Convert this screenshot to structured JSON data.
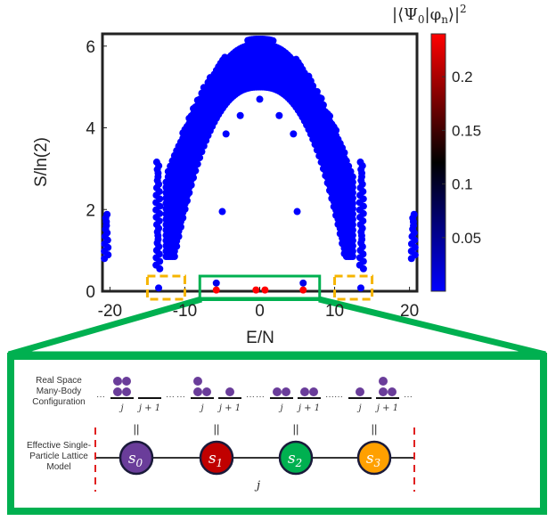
{
  "chart_data": {
    "type": "scatter",
    "xlabel": "E/N",
    "ylabel": "S/ln(2)",
    "xlim": [
      -21,
      21
    ],
    "ylim": [
      0,
      6.3
    ],
    "xticks": [
      "-20",
      "-10",
      "0",
      "10",
      "20"
    ],
    "xtick_values": [
      -20,
      -10,
      0,
      10,
      20
    ],
    "yticks": [
      "0",
      "2",
      "4",
      "6"
    ],
    "ytick_values": [
      0,
      2,
      4,
      6
    ],
    "grid": false,
    "colorbar": {
      "title_prefix": "|⟨Ψ",
      "title_sub0": "0",
      "title_mid": "|φ",
      "title_subn": "n",
      "title_suffix": "⟩|",
      "title_sup": "2",
      "range": [
        0,
        0.24
      ],
      "ticks": [
        "0.05",
        "0.1",
        "0.15",
        "0.2"
      ],
      "tick_values": [
        0.05,
        0.1,
        0.15,
        0.2
      ],
      "colormap": [
        "#0000ff",
        "#000000",
        "#ff0000"
      ]
    },
    "bands": [
      {
        "E": -20.5,
        "S_min": 0.8,
        "S_max": 1.9
      },
      {
        "E": 20.5,
        "S_min": 0.8,
        "S_max": 1.9
      },
      {
        "E": -13.6,
        "S_min": 0.55,
        "S_max": 3.2
      },
      {
        "E": 13.6,
        "S_min": 0.55,
        "S_max": 3.2
      },
      {
        "E": -11.5,
        "S_min": 1.6,
        "S_max": 3.1
      },
      {
        "E": 11.5,
        "S_min": 1.6,
        "S_max": 3.1
      }
    ],
    "dome": {
      "E_half_width": 12.5,
      "S_peak": 6.2,
      "S_inner_peak": 5.0
    },
    "points": [
      {
        "E": 0,
        "S": 4.7,
        "overlap": 0.0
      },
      {
        "E": -2.6,
        "S": 4.3,
        "overlap": 0.0
      },
      {
        "E": 2.6,
        "S": 4.3,
        "overlap": 0.0
      },
      {
        "E": -5.0,
        "S": 1.95,
        "overlap": 0.0
      },
      {
        "E": 5.0,
        "S": 1.95,
        "overlap": 0.0
      },
      {
        "E": -4.5,
        "S": 3.85,
        "overlap": 0.0
      },
      {
        "E": 4.5,
        "S": 3.85,
        "overlap": 0.0
      },
      {
        "E": -13.5,
        "S": 0.08,
        "overlap": 0.0
      },
      {
        "E": 13.5,
        "S": 0.08,
        "overlap": 0.0
      },
      {
        "E": -5.8,
        "S": 0.2,
        "overlap": 0.01
      },
      {
        "E": 5.8,
        "S": 0.2,
        "overlap": 0.01
      },
      {
        "E": -5.8,
        "S": 0.03,
        "overlap": 0.24
      },
      {
        "E": 5.8,
        "S": 0.03,
        "overlap": 0.24
      },
      {
        "E": -0.5,
        "S": 0.03,
        "overlap": 0.24
      },
      {
        "E": 0.7,
        "S": 0.03,
        "overlap": 0.24
      }
    ],
    "highlight_boxes": [
      {
        "style": "dashed-orange",
        "E_range": [
          -15,
          -10
        ]
      },
      {
        "style": "solid-green",
        "E_range": [
          -8,
          8
        ]
      },
      {
        "style": "dashed-orange",
        "E_range": [
          10,
          15
        ]
      }
    ]
  },
  "diagram": {
    "row1_label": [
      "Real Space",
      "Many-Body",
      "Configuration"
    ],
    "row2_label": [
      "Effective Single-",
      "Particle Lattice",
      "Model"
    ],
    "site_j": "j",
    "site_j1": "j + 1",
    "ellipsis": "···",
    "equals": "||",
    "axis_label": "j",
    "configs": [
      {
        "j": 4,
        "j1": 0,
        "state": "s",
        "sub": "0",
        "color": "#6a3d9a"
      },
      {
        "j": 3,
        "j1": 1,
        "state": "s",
        "sub": "1",
        "color": "#c00000"
      },
      {
        "j": 2,
        "j1": 2,
        "state": "s",
        "sub": "2",
        "color": "#00b050"
      },
      {
        "j": 1,
        "j1": 3,
        "state": "s",
        "sub": "3",
        "color": "#ffa000"
      }
    ],
    "particle_color": "#6a3d9a"
  }
}
